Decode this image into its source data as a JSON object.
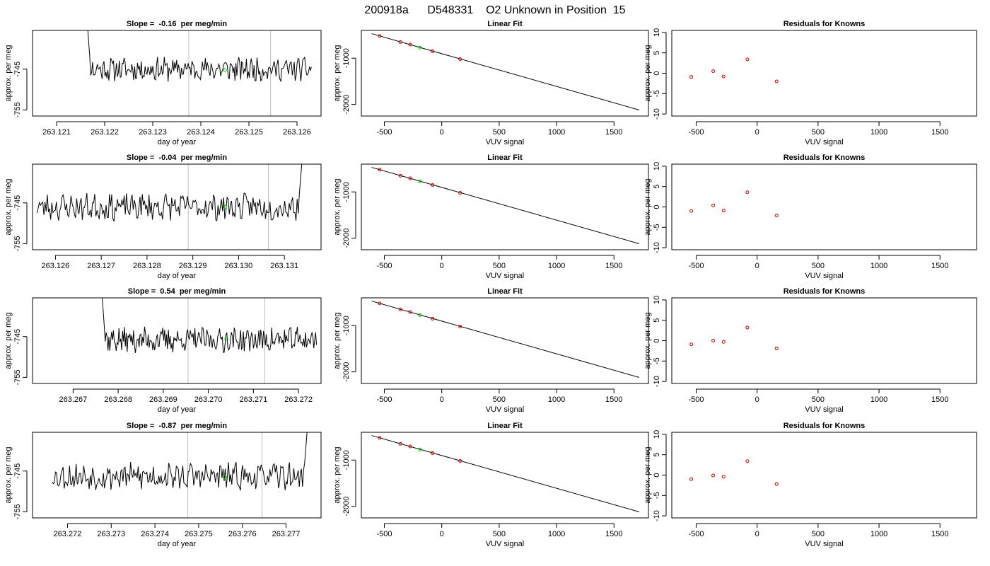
{
  "figure_title": "200918a      D548331    O2 Unknown in Position  15",
  "colors": {
    "trace": "#000000",
    "vline": "#bdbdbd",
    "green": "#00cc00",
    "known": "#cc0000"
  },
  "chart_data": [
    {
      "type": "line",
      "row": 0,
      "col": 0,
      "title": "Slope =  -0.16  per meg/min",
      "xlabel": "day of year",
      "ylabel": "approx. per meg",
      "xlim": [
        263.1205,
        263.1265
      ],
      "ylim": [
        -756.5,
        -735.5
      ],
      "xticks": [
        263.121,
        263.122,
        263.123,
        263.124,
        263.125,
        263.126
      ],
      "xtick_labels": [
        "263.121",
        "263.122",
        "263.123",
        "263.124",
        "263.125",
        "263.126"
      ],
      "yticks": [
        -745,
        -755
      ],
      "ytick_labels": [
        "-745",
        "-755"
      ],
      "vlines": [
        263.12375,
        263.12545
      ],
      "marker": {
        "x": 263.1245,
        "y": -745.2
      },
      "trace": {
        "x_start": 263.12155,
        "x_end": 263.1263,
        "n": 240,
        "mean": -745,
        "amp": 1.6,
        "seed": 11,
        "spike": "start"
      }
    },
    {
      "type": "line",
      "row": 1,
      "col": 0,
      "title": "Slope =  -0.04  per meg/min",
      "xlabel": "day of year",
      "ylabel": "approx. per meg",
      "xlim": [
        263.1255,
        263.1318
      ],
      "ylim": [
        -756.5,
        -735.5
      ],
      "xticks": [
        263.126,
        263.127,
        263.128,
        263.129,
        263.13,
        263.131
      ],
      "xtick_labels": [
        "263.126",
        "263.127",
        "263.128",
        "263.129",
        "263.130",
        "263.131"
      ],
      "yticks": [
        -745,
        -755
      ],
      "ytick_labels": [
        "-745",
        "-755"
      ],
      "vlines": [
        263.1289,
        263.13065
      ],
      "marker": {
        "x": 263.1297,
        "y": -746
      },
      "trace": {
        "x_start": 263.1256,
        "x_end": 263.1315,
        "n": 240,
        "mean": -746,
        "amp": 1.8,
        "seed": 23,
        "spike": "end"
      }
    },
    {
      "type": "line",
      "row": 2,
      "col": 0,
      "title": "Slope =  0.54  per meg/min",
      "xlabel": "day of year",
      "ylabel": "approx. per meg",
      "xlim": [
        263.2661,
        263.2725
      ],
      "ylim": [
        -756.5,
        -735.5
      ],
      "xticks": [
        263.267,
        263.268,
        263.269,
        263.27,
        263.271,
        263.272
      ],
      "xtick_labels": [
        "263.267",
        "263.268",
        "263.269",
        "263.270",
        "263.271",
        "263.272"
      ],
      "yticks": [
        -745,
        -755
      ],
      "ytick_labels": [
        "-745",
        "-755"
      ],
      "vlines": [
        263.26955,
        263.27125
      ],
      "marker": {
        "x": 263.2704,
        "y": -745.6
      },
      "trace": {
        "x_start": 263.26755,
        "x_end": 263.2724,
        "n": 240,
        "mean": -745.8,
        "amp": 1.7,
        "seed": 37,
        "spike": "start"
      }
    },
    {
      "type": "line",
      "row": 3,
      "col": 0,
      "title": "Slope =  -0.87  per meg/min",
      "xlabel": "day of year",
      "ylabel": "approx. per meg",
      "xlim": [
        263.2712,
        263.2778
      ],
      "ylim": [
        -756.5,
        -735.5
      ],
      "xticks": [
        263.272,
        263.273,
        263.274,
        263.275,
        263.276,
        263.277
      ],
      "xtick_labels": [
        "263.272",
        "263.273",
        "263.274",
        "263.275",
        "263.276",
        "263.277"
      ],
      "yticks": [
        -745,
        -755
      ],
      "ytick_labels": [
        "-745",
        "-755"
      ],
      "vlines": [
        263.27475,
        263.27645
      ],
      "marker": {
        "x": 263.2756,
        "y": -746.5
      },
      "trace": {
        "x_start": 263.27165,
        "x_end": 263.2776,
        "n": 240,
        "mean": -746.3,
        "amp": 1.8,
        "seed": 53,
        "spike": "end"
      }
    },
    {
      "type": "scatter",
      "row": 0,
      "col": 1,
      "title": "Linear Fit",
      "xlabel": "VUV signal",
      "ylabel": "approx. per meg",
      "xlim": [
        -700,
        1800
      ],
      "ylim": [
        -2250,
        -400
      ],
      "xticks": [
        -500,
        0,
        500,
        1000,
        1500
      ],
      "xtick_labels": [
        "-500",
        "0",
        "500",
        "1000",
        "1500"
      ],
      "yticks": [
        -1000,
        -2000
      ],
      "ytick_labels": [
        "-1000",
        "-2000"
      ],
      "fit_line": {
        "x1": -610,
        "y1": -470,
        "x2": 1720,
        "y2": -2120
      },
      "knowns": [
        {
          "x": -540,
          "y": -520
        },
        {
          "x": -360,
          "y": -650
        },
        {
          "x": -275,
          "y": -705
        },
        {
          "x": -80,
          "y": -850
        },
        {
          "x": 160,
          "y": -1020
        }
      ],
      "unknown": {
        "x": -190,
        "y": -770
      }
    },
    {
      "type": "scatter",
      "row": 1,
      "col": 1,
      "title": "Linear Fit",
      "xlabel": "VUV signal",
      "ylabel": "approx. per meg",
      "xlim": [
        -700,
        1800
      ],
      "ylim": [
        -2250,
        -400
      ],
      "xticks": [
        -500,
        0,
        500,
        1000,
        1500
      ],
      "xtick_labels": [
        "-500",
        "0",
        "500",
        "1000",
        "1500"
      ],
      "yticks": [
        -1000,
        -2000
      ],
      "ytick_labels": [
        "-1000",
        "-2000"
      ],
      "fit_line": {
        "x1": -610,
        "y1": -470,
        "x2": 1720,
        "y2": -2120
      },
      "knowns": [
        {
          "x": -540,
          "y": -520
        },
        {
          "x": -360,
          "y": -650
        },
        {
          "x": -275,
          "y": -705
        },
        {
          "x": -80,
          "y": -850
        },
        {
          "x": 160,
          "y": -1020
        }
      ],
      "unknown": {
        "x": -190,
        "y": -770
      }
    },
    {
      "type": "scatter",
      "row": 2,
      "col": 1,
      "title": "Linear Fit",
      "xlabel": "VUV signal",
      "ylabel": "approx. per meg",
      "xlim": [
        -700,
        1800
      ],
      "ylim": [
        -2250,
        -400
      ],
      "xticks": [
        -500,
        0,
        500,
        1000,
        1500
      ],
      "xtick_labels": [
        "-500",
        "0",
        "500",
        "1000",
        "1500"
      ],
      "yticks": [
        -1000,
        -2000
      ],
      "ytick_labels": [
        "-1000",
        "-2000"
      ],
      "fit_line": {
        "x1": -610,
        "y1": -470,
        "x2": 1720,
        "y2": -2120
      },
      "knowns": [
        {
          "x": -540,
          "y": -520
        },
        {
          "x": -360,
          "y": -650
        },
        {
          "x": -275,
          "y": -705
        },
        {
          "x": -80,
          "y": -850
        },
        {
          "x": 160,
          "y": -1020
        }
      ],
      "unknown": {
        "x": -190,
        "y": -770
      }
    },
    {
      "type": "scatter",
      "row": 3,
      "col": 1,
      "title": "Linear Fit",
      "xlabel": "VUV signal",
      "ylabel": "approx. per meg",
      "xlim": [
        -700,
        1800
      ],
      "ylim": [
        -2250,
        -400
      ],
      "xticks": [
        -500,
        0,
        500,
        1000,
        1500
      ],
      "xtick_labels": [
        "-500",
        "0",
        "500",
        "1000",
        "1500"
      ],
      "yticks": [
        -1000,
        -2000
      ],
      "ytick_labels": [
        "-1000",
        "-2000"
      ],
      "fit_line": {
        "x1": -610,
        "y1": -470,
        "x2": 1720,
        "y2": -2120
      },
      "knowns": [
        {
          "x": -540,
          "y": -520
        },
        {
          "x": -360,
          "y": -650
        },
        {
          "x": -275,
          "y": -705
        },
        {
          "x": -80,
          "y": -850
        },
        {
          "x": 160,
          "y": -1020
        }
      ],
      "unknown": {
        "x": -190,
        "y": -770
      }
    },
    {
      "type": "scatter",
      "row": 0,
      "col": 2,
      "title": "Residuals for Knowns",
      "xlabel": "VUV signal",
      "ylabel": "approx. per meg",
      "xlim": [
        -700,
        1800
      ],
      "ylim": [
        -10.5,
        10.5
      ],
      "xticks": [
        -500,
        0,
        500,
        1000,
        1500
      ],
      "xtick_labels": [
        "-500",
        "0",
        "500",
        "1000",
        "1500"
      ],
      "yticks": [
        10,
        5,
        0,
        -5,
        -10
      ],
      "ytick_labels": [
        "10",
        "5",
        "0",
        "-5",
        "-10"
      ],
      "points": [
        {
          "x": -540,
          "y": -0.9
        },
        {
          "x": -360,
          "y": 0.5
        },
        {
          "x": -275,
          "y": -0.8
        },
        {
          "x": -80,
          "y": 3.4
        },
        {
          "x": 160,
          "y": -2.0
        }
      ]
    },
    {
      "type": "scatter",
      "row": 1,
      "col": 2,
      "title": "Residuals for Knowns",
      "xlabel": "VUV signal",
      "ylabel": "approx. per meg",
      "xlim": [
        -700,
        1800
      ],
      "ylim": [
        -10.5,
        10.5
      ],
      "xticks": [
        -500,
        0,
        500,
        1000,
        1500
      ],
      "xtick_labels": [
        "-500",
        "0",
        "500",
        "1000",
        "1500"
      ],
      "yticks": [
        10,
        5,
        0,
        -5,
        -10
      ],
      "ytick_labels": [
        "10",
        "5",
        "0",
        "-5",
        "-10"
      ],
      "points": [
        {
          "x": -540,
          "y": -1.0
        },
        {
          "x": -360,
          "y": 0.4
        },
        {
          "x": -275,
          "y": -0.9
        },
        {
          "x": -80,
          "y": 3.6
        },
        {
          "x": 160,
          "y": -2.1
        }
      ]
    },
    {
      "type": "scatter",
      "row": 2,
      "col": 2,
      "title": "Residuals for Knowns",
      "xlabel": "VUV signal",
      "ylabel": "approx. per meg",
      "xlim": [
        -700,
        1800
      ],
      "ylim": [
        -10.5,
        10.5
      ],
      "xticks": [
        -500,
        0,
        500,
        1000,
        1500
      ],
      "xtick_labels": [
        "-500",
        "0",
        "500",
        "1000",
        "1500"
      ],
      "yticks": [
        10,
        5,
        0,
        -5,
        -10
      ],
      "ytick_labels": [
        "10",
        "5",
        "0",
        "-5",
        "-10"
      ],
      "points": [
        {
          "x": -540,
          "y": -0.9
        },
        {
          "x": -360,
          "y": 0.0
        },
        {
          "x": -275,
          "y": -0.3
        },
        {
          "x": -80,
          "y": 3.2
        },
        {
          "x": 160,
          "y": -1.9
        }
      ]
    },
    {
      "type": "scatter",
      "row": 3,
      "col": 2,
      "title": "Residuals for Knowns",
      "xlabel": "VUV signal",
      "ylabel": "approx. per meg",
      "xlim": [
        -700,
        1800
      ],
      "ylim": [
        -10.5,
        10.5
      ],
      "xticks": [
        -500,
        0,
        500,
        1000,
        1500
      ],
      "xtick_labels": [
        "-500",
        "0",
        "500",
        "1000",
        "1500"
      ],
      "yticks": [
        10,
        5,
        0,
        -5,
        -10
      ],
      "ytick_labels": [
        "10",
        "5",
        "0",
        "-5",
        "-10"
      ],
      "points": [
        {
          "x": -540,
          "y": -1.0
        },
        {
          "x": -360,
          "y": -0.1
        },
        {
          "x": -275,
          "y": -0.4
        },
        {
          "x": -80,
          "y": 3.4
        },
        {
          "x": 160,
          "y": -2.2
        }
      ]
    }
  ]
}
